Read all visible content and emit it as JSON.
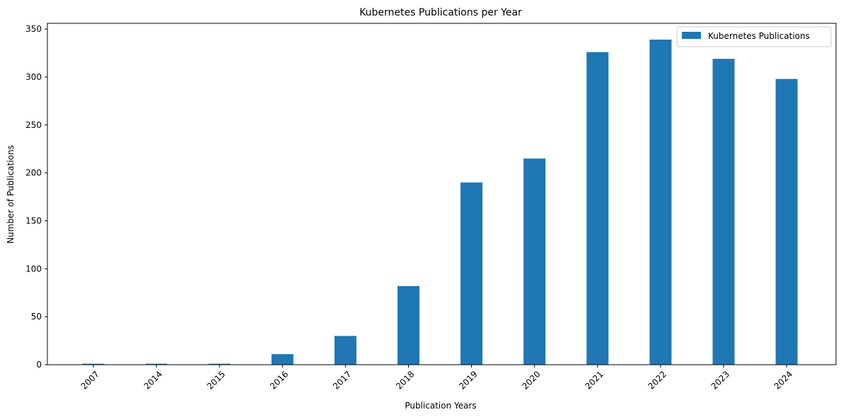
{
  "chart_data": {
    "type": "bar",
    "title": "Kubernetes Publications per Year",
    "xlabel": "Publication Years",
    "ylabel": "Number of Publications",
    "categories": [
      "2007",
      "2014",
      "2015",
      "2016",
      "2017",
      "2018",
      "2019",
      "2020",
      "2021",
      "2022",
      "2023",
      "2024"
    ],
    "series": [
      {
        "name": "Kubernetes Publications",
        "values": [
          1,
          1,
          1,
          11,
          30,
          82,
          190,
          215,
          326,
          339,
          319,
          298
        ],
        "color": "#1f77b4"
      }
    ],
    "ylim": [
      0,
      356
    ],
    "yticks": [
      0,
      50,
      100,
      150,
      200,
      250,
      300,
      350
    ],
    "legend_position": "top-right",
    "grid": false,
    "x_tick_rotation_deg": 45
  }
}
